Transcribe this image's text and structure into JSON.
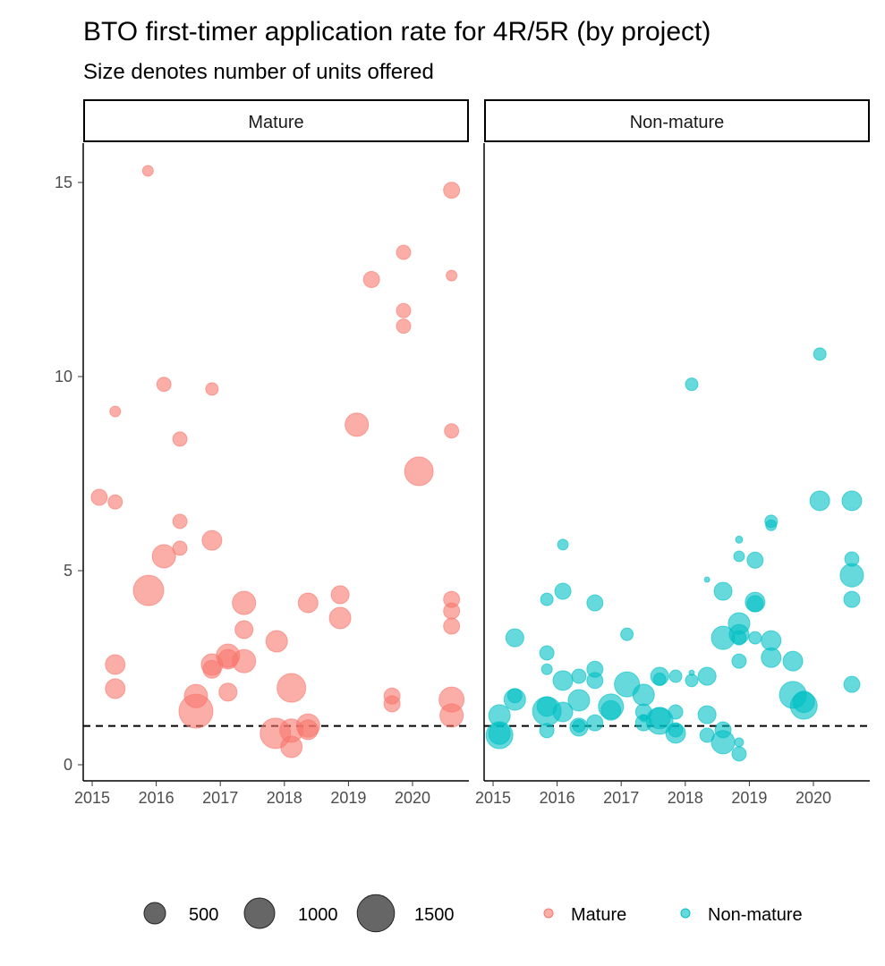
{
  "chart_data": {
    "type": "scatter",
    "title": "BTO first-timer application rate for 4R/5R (by project)",
    "subtitle": "Size denotes number of units offered",
    "facets": [
      "Mature",
      "Non-mature"
    ],
    "xlabel": "",
    "ylabel": "",
    "xlim": [
      2014.85,
      2020.9
    ],
    "ylim": [
      -0.4,
      16.3
    ],
    "x_ticks": [
      "2015",
      "2016",
      "2017",
      "2018",
      "2019",
      "2020"
    ],
    "y_ticks": [
      "0",
      "5",
      "10",
      "15"
    ],
    "reference_line": {
      "y": 1,
      "style": "dashed"
    },
    "grid": false,
    "legend": {
      "placement": "bottom",
      "size_legend": [
        500,
        1000,
        1500
      ],
      "color_legend": [
        "Mature",
        "Non-mature"
      ]
    },
    "colors": {
      "Mature": "#F8766D",
      "Non-mature": "#00BFC4",
      "size_key": "#333333"
    },
    "point_format": [
      "year",
      "application_rate",
      "units_offered"
    ],
    "series": [
      {
        "name": "Mature",
        "points": [
          [
            2015.11,
            6.89,
            280
          ],
          [
            2015.36,
            9.1,
            125
          ],
          [
            2015.36,
            6.77,
            220
          ],
          [
            2015.87,
            15.3,
            125
          ],
          [
            2016.12,
            9.8,
            220
          ],
          [
            2015.88,
            4.49,
            1000
          ],
          [
            2016.12,
            5.37,
            590
          ],
          [
            2016.37,
            8.39,
            220
          ],
          [
            2016.37,
            6.27,
            220
          ],
          [
            2016.37,
            5.58,
            220
          ],
          [
            2016.87,
            9.68,
            170
          ],
          [
            2016.87,
            5.78,
            420
          ],
          [
            2015.36,
            2.58,
            420
          ],
          [
            2015.36,
            1.96,
            420
          ],
          [
            2016.62,
            1.77,
            590
          ],
          [
            2016.62,
            1.38,
            1250
          ],
          [
            2017.12,
            1.87,
            350
          ],
          [
            2016.87,
            2.58,
            500
          ],
          [
            2016.87,
            2.46,
            350
          ],
          [
            2017.12,
            2.81,
            590
          ],
          [
            2017.12,
            2.72,
            420
          ],
          [
            2017.37,
            2.67,
            590
          ],
          [
            2017.37,
            3.48,
            350
          ],
          [
            2017.37,
            4.17,
            590
          ],
          [
            2017.88,
            3.18,
            500
          ],
          [
            2017.86,
            0.81,
            1000
          ],
          [
            2018.11,
            0.88,
            590
          ],
          [
            2018.11,
            0.46,
            500
          ],
          [
            2018.11,
            1.98,
            890
          ],
          [
            2018.37,
            1.01,
            590
          ],
          [
            2018.37,
            0.9,
            420
          ],
          [
            2018.37,
            4.17,
            420
          ],
          [
            2018.87,
            4.38,
            350
          ],
          [
            2018.87,
            3.78,
            500
          ],
          [
            2019.13,
            8.76,
            590
          ],
          [
            2019.36,
            12.5,
            280
          ],
          [
            2019.68,
            1.77,
            280
          ],
          [
            2019.68,
            1.57,
            280
          ],
          [
            2019.86,
            13.2,
            220
          ],
          [
            2019.86,
            11.7,
            220
          ],
          [
            2019.86,
            11.3,
            220
          ],
          [
            2020.1,
            7.56,
            890
          ],
          [
            2020.61,
            14.8,
            280
          ],
          [
            2020.61,
            12.6,
            125
          ],
          [
            2020.61,
            8.6,
            220
          ],
          [
            2020.61,
            4.26,
            280
          ],
          [
            2020.61,
            3.96,
            280
          ],
          [
            2020.61,
            3.57,
            280
          ],
          [
            2020.61,
            1.68,
            680
          ],
          [
            2020.61,
            1.27,
            590
          ]
        ]
      },
      {
        "name": "Non-mature",
        "points": [
          [
            2020.1,
            6.8,
            420
          ],
          [
            2020.6,
            6.8,
            420
          ],
          [
            2019.34,
            6.27,
            170
          ],
          [
            2019.34,
            6.17,
            125
          ],
          [
            2018.84,
            5.8,
            55
          ],
          [
            2018.84,
            5.37,
            125
          ],
          [
            2019.09,
            5.27,
            280
          ],
          [
            2018.34,
            4.77,
            31
          ],
          [
            2018.59,
            4.47,
            350
          ],
          [
            2019.09,
            4.19,
            420
          ],
          [
            2019.09,
            4.15,
            280
          ],
          [
            2020.6,
            5.3,
            220
          ],
          [
            2020.6,
            4.88,
            590
          ],
          [
            2020.6,
            4.26,
            280
          ],
          [
            2016.09,
            5.67,
            125
          ],
          [
            2015.84,
            4.26,
            170
          ],
          [
            2016.09,
            4.47,
            280
          ],
          [
            2016.59,
            4.17,
            280
          ],
          [
            2015.34,
            3.27,
            350
          ],
          [
            2017.09,
            3.36,
            170
          ],
          [
            2018.84,
            3.64,
            500
          ],
          [
            2018.59,
            3.27,
            590
          ],
          [
            2018.84,
            3.36,
            420
          ],
          [
            2018.84,
            3.27,
            222
          ],
          [
            2019.09,
            3.27,
            170
          ],
          [
            2019.34,
            3.2,
            420
          ],
          [
            2019.34,
            2.76,
            420
          ],
          [
            2019.68,
            2.67,
            420
          ],
          [
            2018.84,
            2.67,
            222
          ],
          [
            2015.84,
            2.88,
            222
          ],
          [
            2015.84,
            2.46,
            125
          ],
          [
            2016.09,
            2.17,
            420
          ],
          [
            2016.34,
            2.28,
            222
          ],
          [
            2016.59,
            2.46,
            280
          ],
          [
            2016.59,
            2.17,
            280
          ],
          [
            2017.09,
            2.07,
            680
          ],
          [
            2017.35,
            1.8,
            500
          ],
          [
            2017.6,
            2.28,
            350
          ],
          [
            2017.6,
            2.2,
            170
          ],
          [
            2017.85,
            2.28,
            170
          ],
          [
            2018.1,
            2.37,
            31
          ],
          [
            2018.1,
            2.17,
            170
          ],
          [
            2018.34,
            2.28,
            350
          ],
          [
            2015.34,
            1.68,
            500
          ],
          [
            2015.34,
            1.78,
            222
          ],
          [
            2015.1,
            1.27,
            500
          ],
          [
            2015.1,
            0.76,
            780
          ],
          [
            2015.1,
            0.8,
            500
          ],
          [
            2015.84,
            1.38,
            888
          ],
          [
            2015.84,
            1.5,
            420
          ],
          [
            2016.09,
            1.36,
            420
          ],
          [
            2015.84,
            0.88,
            222
          ],
          [
            2016.34,
            1.66,
            500
          ],
          [
            2016.34,
            0.97,
            350
          ],
          [
            2016.34,
            1.0,
            170
          ],
          [
            2016.59,
            1.08,
            280
          ],
          [
            2016.84,
            1.5,
            680
          ],
          [
            2016.84,
            1.4,
            420
          ],
          [
            2017.35,
            1.36,
            280
          ],
          [
            2017.35,
            1.08,
            280
          ],
          [
            2017.35,
            1.2,
            55
          ],
          [
            2017.6,
            1.13,
            780
          ],
          [
            2017.6,
            1.2,
            500
          ],
          [
            2017.85,
            1.36,
            222
          ],
          [
            2017.85,
            0.81,
            420
          ],
          [
            2017.85,
            0.9,
            222
          ],
          [
            2018.34,
            1.29,
            350
          ],
          [
            2018.34,
            0.76,
            222
          ],
          [
            2018.59,
            0.58,
            590
          ],
          [
            2018.59,
            0.9,
            280
          ],
          [
            2018.84,
            0.58,
            87
          ],
          [
            2018.84,
            0.28,
            222
          ],
          [
            2019.68,
            1.8,
            780
          ],
          [
            2019.85,
            1.52,
            780
          ],
          [
            2019.85,
            1.62,
            500
          ],
          [
            2020.6,
            2.07,
            280
          ],
          [
            2018.1,
            9.8,
            170
          ],
          [
            2020.1,
            10.58,
            170
          ]
        ]
      }
    ]
  }
}
